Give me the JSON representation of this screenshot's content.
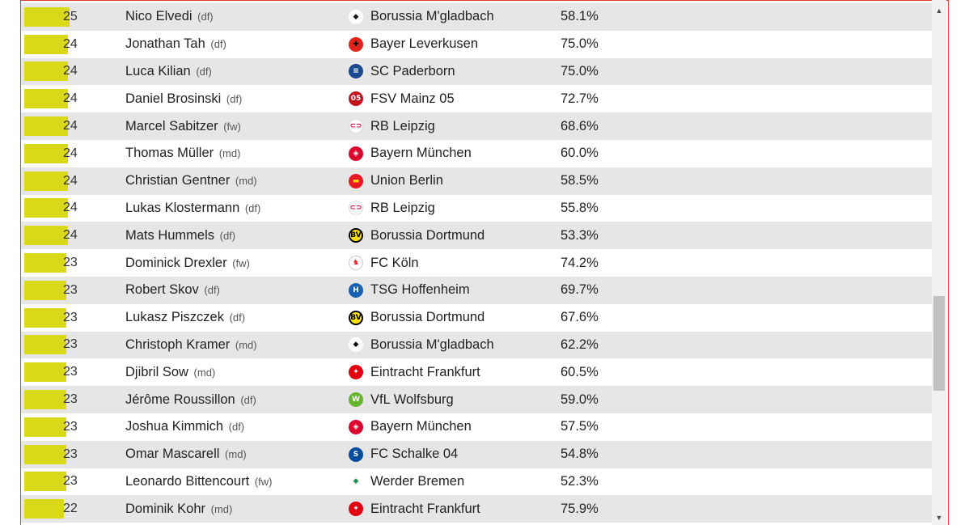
{
  "colors": {
    "bar": "#d9d91a",
    "row_shade": "#e6e6e6",
    "frame_border": "#e53a3a"
  },
  "scrollbar": {
    "up_icon": "▲",
    "down_icon": "▼",
    "position_fraction": 0.72
  },
  "rows": [
    {
      "count": "25",
      "bar_fraction": 1.0,
      "player": "Nico Elvedi",
      "pos": "(df)",
      "club": "Borussia M'gladbach",
      "logo": "gladbach-logo-icon",
      "pct": "58.1%"
    },
    {
      "count": "24",
      "bar_fraction": 0.96,
      "player": "Jonathan Tah",
      "pos": "(df)",
      "club": "Bayer Leverkusen",
      "logo": "leverkusen-logo-icon",
      "pct": "75.0%"
    },
    {
      "count": "24",
      "bar_fraction": 0.96,
      "player": "Luca Kilian",
      "pos": "(df)",
      "club": "SC Paderborn",
      "logo": "paderborn-logo-icon",
      "pct": "75.0%"
    },
    {
      "count": "24",
      "bar_fraction": 0.96,
      "player": "Daniel Brosinski",
      "pos": "(df)",
      "club": "FSV Mainz 05",
      "logo": "mainz-logo-icon",
      "pct": "72.7%"
    },
    {
      "count": "24",
      "bar_fraction": 0.96,
      "player": "Marcel Sabitzer",
      "pos": "(fw)",
      "club": "RB Leipzig",
      "logo": "leipzig-logo-icon",
      "pct": "68.6%"
    },
    {
      "count": "24",
      "bar_fraction": 0.96,
      "player": "Thomas Müller",
      "pos": "(md)",
      "club": "Bayern München",
      "logo": "bayern-logo-icon",
      "pct": "60.0%"
    },
    {
      "count": "24",
      "bar_fraction": 0.96,
      "player": "Christian Gentner",
      "pos": "(md)",
      "club": "Union Berlin",
      "logo": "union-logo-icon",
      "pct": "58.5%"
    },
    {
      "count": "24",
      "bar_fraction": 0.96,
      "player": "Lukas Klostermann",
      "pos": "(df)",
      "club": "RB Leipzig",
      "logo": "leipzig-logo-icon",
      "pct": "55.8%"
    },
    {
      "count": "24",
      "bar_fraction": 0.96,
      "player": "Mats Hummels",
      "pos": "(df)",
      "club": "Borussia Dortmund",
      "logo": "dortmund-logo-icon",
      "pct": "53.3%"
    },
    {
      "count": "23",
      "bar_fraction": 0.92,
      "player": "Dominick Drexler",
      "pos": "(fw)",
      "club": "FC Köln",
      "logo": "koeln-logo-icon",
      "pct": "74.2%"
    },
    {
      "count": "23",
      "bar_fraction": 0.92,
      "player": "Robert Skov",
      "pos": "(df)",
      "club": "TSG Hoffenheim",
      "logo": "hoffenheim-logo-icon",
      "pct": "69.7%"
    },
    {
      "count": "23",
      "bar_fraction": 0.92,
      "player": "Lukasz Piszczek",
      "pos": "(df)",
      "club": "Borussia Dortmund",
      "logo": "dortmund-logo-icon",
      "pct": "67.6%"
    },
    {
      "count": "23",
      "bar_fraction": 0.92,
      "player": "Christoph Kramer",
      "pos": "(md)",
      "club": "Borussia M'gladbach",
      "logo": "gladbach-logo-icon",
      "pct": "62.2%"
    },
    {
      "count": "23",
      "bar_fraction": 0.92,
      "player": "Djibril Sow",
      "pos": "(md)",
      "club": "Eintracht Frankfurt",
      "logo": "frankfurt-logo-icon",
      "pct": "60.5%"
    },
    {
      "count": "23",
      "bar_fraction": 0.92,
      "player": "Jérôme Roussillon",
      "pos": "(df)",
      "club": "VfL Wolfsburg",
      "logo": "wolfsburg-logo-icon",
      "pct": "59.0%"
    },
    {
      "count": "23",
      "bar_fraction": 0.92,
      "player": "Joshua Kimmich",
      "pos": "(df)",
      "club": "Bayern München",
      "logo": "bayern-logo-icon",
      "pct": "57.5%"
    },
    {
      "count": "23",
      "bar_fraction": 0.92,
      "player": "Omar Mascarell",
      "pos": "(md)",
      "club": "FC Schalke 04",
      "logo": "schalke-logo-icon",
      "pct": "54.8%"
    },
    {
      "count": "23",
      "bar_fraction": 0.92,
      "player": "Leonardo Bittencourt",
      "pos": "(fw)",
      "club": "Werder Bremen",
      "logo": "bremen-logo-icon",
      "pct": "52.3%"
    },
    {
      "count": "22",
      "bar_fraction": 0.88,
      "player": "Dominik Kohr",
      "pos": "(md)",
      "club": "Eintracht Frankfurt",
      "logo": "frankfurt-logo-icon",
      "pct": "75.9%"
    }
  ]
}
